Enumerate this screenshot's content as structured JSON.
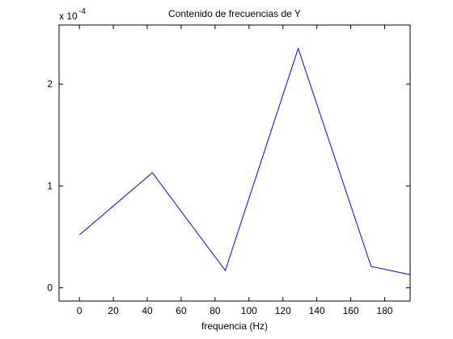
{
  "chart_data": {
    "type": "line",
    "title": "Contenido de frecuencias de Y",
    "xlabel": "frequencia (Hz)",
    "ylabel": "",
    "y_exponent_label": {
      "base": "x 10",
      "exponent": "-4"
    },
    "xlim": [
      -12,
      195
    ],
    "ylim": [
      -0.13,
      2.58
    ],
    "xticks": [
      0,
      20,
      40,
      60,
      80,
      100,
      120,
      140,
      160,
      180
    ],
    "yticks": [
      0,
      1,
      2
    ],
    "grid": false,
    "legend": "none",
    "series": [
      {
        "x": [
          0,
          43,
          86,
          129,
          172,
          195
        ],
        "y": [
          0.52,
          1.13,
          0.17,
          2.35,
          0.21,
          0.13
        ],
        "color": "#0000ff"
      }
    ]
  }
}
